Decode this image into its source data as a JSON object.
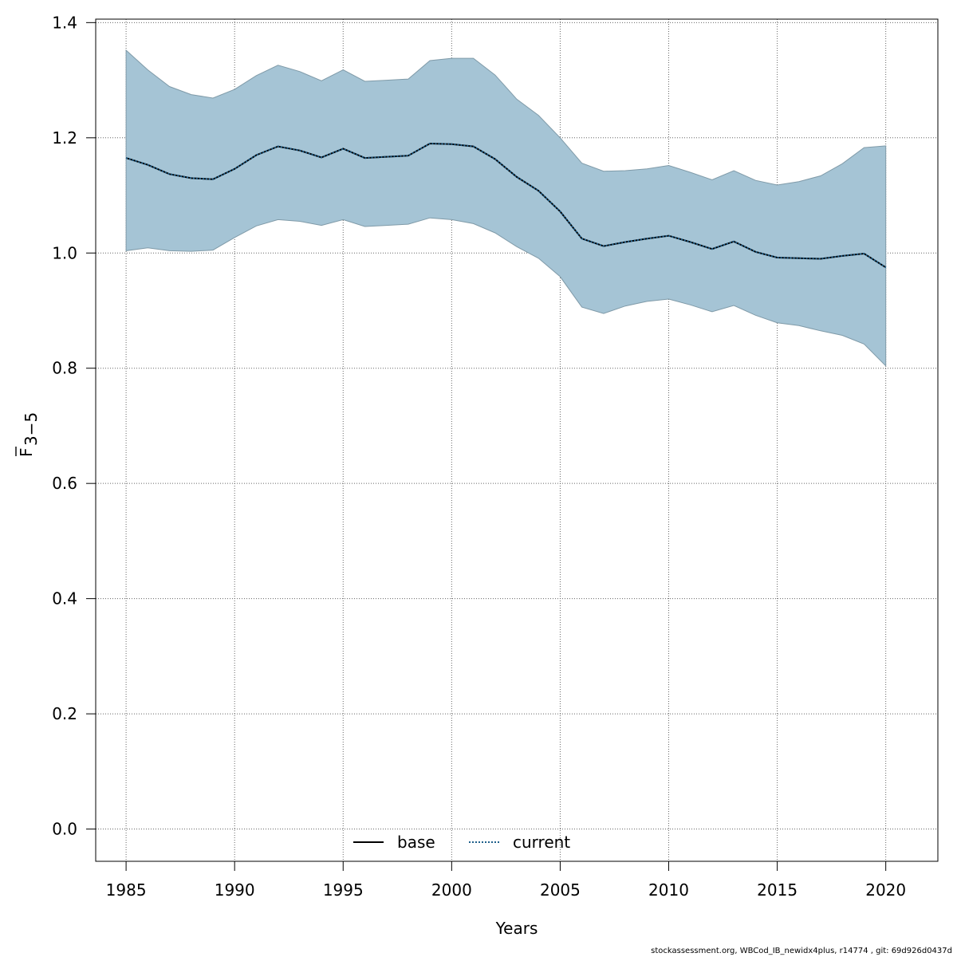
{
  "chart_data": {
    "type": "line",
    "title": "",
    "xlabel": "Years",
    "ylabel_main": "F",
    "ylabel_sub": "3−5",
    "xlim": [
      1983.6,
      2022.4
    ],
    "ylim": [
      -0.056,
      1.406
    ],
    "xticks": [
      1985,
      1990,
      1995,
      2000,
      2005,
      2010,
      2015,
      2020
    ],
    "yticks": [
      0.0,
      0.2,
      0.4,
      0.6,
      0.8,
      1.0,
      1.2,
      1.4
    ],
    "ytick_labels": [
      "0.0",
      "0.2",
      "0.4",
      "0.6",
      "0.8",
      "1.0",
      "1.2",
      "1.4"
    ],
    "grid": true,
    "legend_position": "bottom-center",
    "x": [
      1985,
      1986,
      1987,
      1988,
      1989,
      1990,
      1991,
      1992,
      1993,
      1994,
      1995,
      1996,
      1997,
      1998,
      1999,
      2000,
      2001,
      2002,
      2003,
      2004,
      2005,
      2006,
      2007,
      2008,
      2009,
      2010,
      2011,
      2012,
      2013,
      2014,
      2015,
      2016,
      2017,
      2018,
      2019,
      2020
    ],
    "band": {
      "color": "#a5c4d5",
      "lower": [
        1.004,
        1.009,
        1.004,
        1.003,
        1.005,
        1.027,
        1.047,
        1.058,
        1.055,
        1.048,
        1.058,
        1.046,
        1.048,
        1.05,
        1.061,
        1.058,
        1.051,
        1.035,
        1.011,
        0.991,
        0.959,
        0.906,
        0.895,
        0.908,
        0.916,
        0.92,
        0.91,
        0.898,
        0.909,
        0.892,
        0.879,
        0.874,
        0.865,
        0.857,
        0.842,
        0.804
      ],
      "upper": [
        1.352,
        1.318,
        1.289,
        1.275,
        1.269,
        1.284,
        1.308,
        1.326,
        1.315,
        1.299,
        1.318,
        1.298,
        1.3,
        1.302,
        1.334,
        1.338,
        1.338,
        1.309,
        1.267,
        1.239,
        1.2,
        1.156,
        1.142,
        1.143,
        1.146,
        1.152,
        1.14,
        1.127,
        1.143,
        1.126,
        1.118,
        1.124,
        1.134,
        1.155,
        1.183,
        1.186
      ]
    },
    "series": [
      {
        "name": "base",
        "color": "#000000",
        "style": "solid",
        "values": [
          1.165,
          1.153,
          1.137,
          1.13,
          1.128,
          1.146,
          1.17,
          1.185,
          1.178,
          1.166,
          1.181,
          1.165,
          1.167,
          1.169,
          1.19,
          1.189,
          1.185,
          1.163,
          1.132,
          1.108,
          1.072,
          1.025,
          1.012,
          1.019,
          1.025,
          1.03,
          1.019,
          1.007,
          1.02,
          1.002,
          0.992,
          0.991,
          0.99,
          0.995,
          0.999,
          0.975
        ]
      },
      {
        "name": "current",
        "color": "#1f5f8b",
        "style": "dotted",
        "values": [
          1.165,
          1.153,
          1.137,
          1.13,
          1.128,
          1.146,
          1.17,
          1.185,
          1.178,
          1.166,
          1.181,
          1.165,
          1.167,
          1.169,
          1.19,
          1.189,
          1.185,
          1.163,
          1.132,
          1.108,
          1.072,
          1.025,
          1.012,
          1.019,
          1.025,
          1.03,
          1.019,
          1.007,
          1.02,
          1.002,
          0.992,
          0.991,
          0.99,
          0.995,
          0.999,
          0.975
        ]
      }
    ]
  },
  "footer_text": "stockassessment.org, WBCod_IB_newidx4plus, r14774 , git: 69d926d0437d"
}
